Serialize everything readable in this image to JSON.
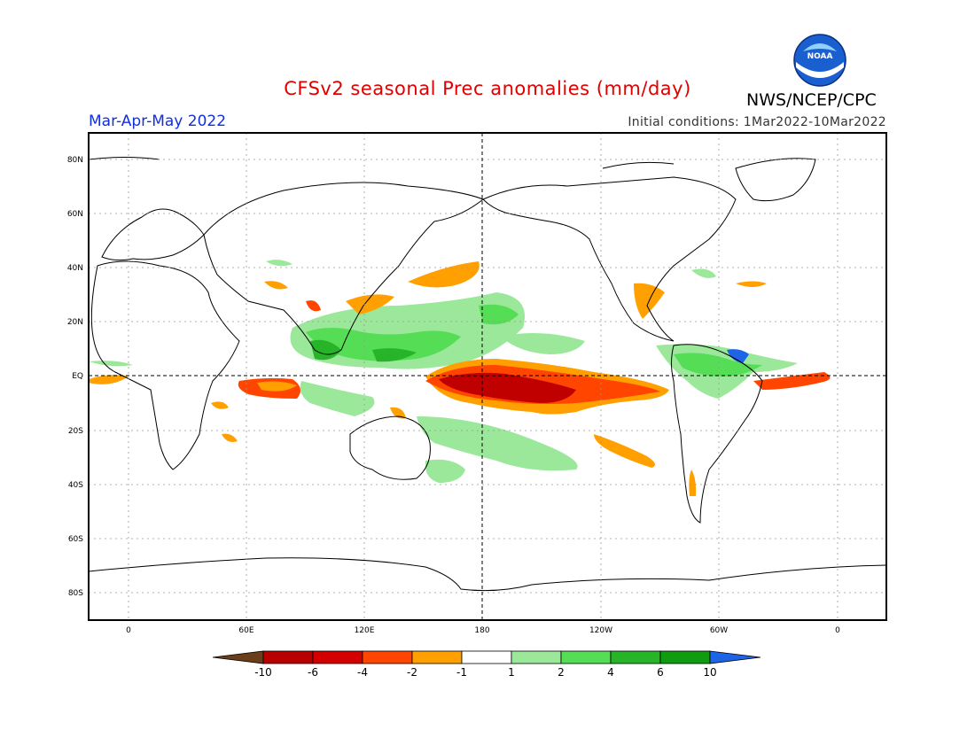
{
  "header": {
    "title": "CFSv2 seasonal Prec anomalies (mm/day)",
    "agency": "NWS/NCEP/CPC",
    "logo_text": "NOAA",
    "season": "Mar-Apr-May 2022",
    "initial_conditions": "Initial conditions: 1Mar2022-10Mar2022"
  },
  "axes": {
    "lat_ticks": [
      "80N",
      "60N",
      "40N",
      "20N",
      "EQ",
      "20S",
      "40S",
      "60S",
      "80S"
    ],
    "lon_ticks": [
      "0",
      "60E",
      "120E",
      "180",
      "120W",
      "60W",
      "0"
    ]
  },
  "colorbar": {
    "labels": [
      "-10",
      "-6",
      "-4",
      "-2",
      "-1",
      "1",
      "2",
      "4",
      "6",
      "10"
    ],
    "colors": [
      "#6b3e1a",
      "#b80000",
      "#d40000",
      "#ff4500",
      "#ffa000",
      "#ffffff",
      "#9be89b",
      "#55dd55",
      "#28b428",
      "#109b10",
      "#1e64e6"
    ]
  },
  "colors": {
    "title": "#e00000",
    "season": "#1030e0",
    "strong_dry": "#c00000",
    "dry": "#ff4500",
    "light_dry": "#ffa000",
    "light_wet": "#9be89b",
    "wet": "#55dd55",
    "strong_wet": "#28b428",
    "coastline": "#000000"
  }
}
